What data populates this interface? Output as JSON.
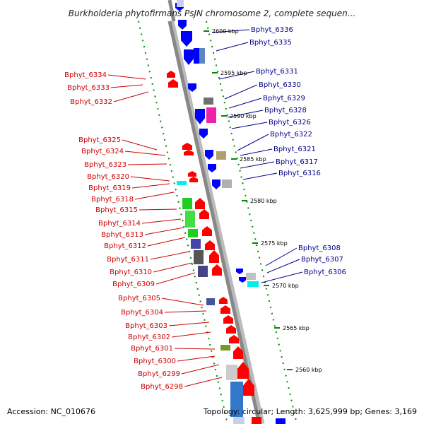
{
  "title": "Burkholderia phytofirmans PsJN chromosome 2, complete sequen...",
  "footer": {
    "accession": "Accession: NC_010676",
    "summary": "Topology: circular; Length: 3,625,999 bp; Genes: 3,169"
  },
  "colors": {
    "forward": "#ff0000",
    "reverse": "#0000ff",
    "forward_label": "#cc0000",
    "reverse_label": "#00008b",
    "backbone": "#888888",
    "track_dots": "#008800"
  },
  "scale_labels": [
    "2600 kbp",
    "2595 kbp",
    "2590 kbp",
    "2585 kbp",
    "2580 kbp",
    "2575 kbp",
    "2570 kbp",
    "2565 kbp",
    "2560 kbp"
  ],
  "reverse_genes": [
    "Bphyt_6336",
    "Bphyt_6335",
    "Bphyt_6331",
    "Bphyt_6330",
    "Bphyt_6329",
    "Bphyt_6328",
    "Bphyt_6326",
    "Bphyt_6322",
    "Bphyt_6321",
    "Bphyt_6317",
    "Bphyt_6316",
    "Bphyt_6308",
    "Bphyt_6307",
    "Bphyt_6306"
  ],
  "forward_genes": [
    "Bphyt_6334",
    "Bphyt_6333",
    "Bphyt_6332",
    "Bphyt_6325",
    "Bphyt_6324",
    "Bphyt_6323",
    "Bphyt_6320",
    "Bphyt_6319",
    "Bphyt_6318",
    "Bphyt_6315",
    "Bphyt_6314",
    "Bphyt_6313",
    "Bphyt_6312",
    "Bphyt_6311",
    "Bphyt_6310",
    "Bphyt_6309",
    "Bphyt_6305",
    "Bphyt_6304",
    "Bphyt_6303",
    "Bphyt_6302",
    "Bphyt_6301",
    "Bphyt_6300",
    "Bphyt_6299",
    "Bphyt_6298"
  ]
}
